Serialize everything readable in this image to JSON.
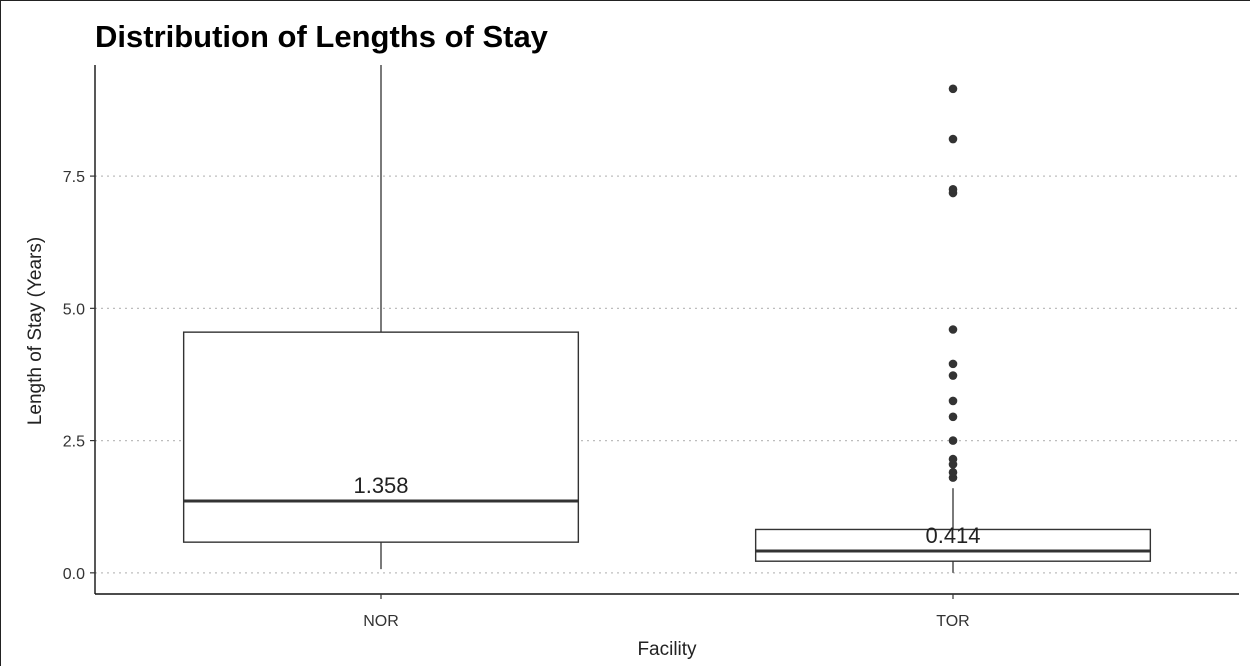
{
  "chart_data": {
    "type": "box",
    "title": "Distribution of Lengths of Stay",
    "xlabel": "Facility",
    "ylabel": "Length of Stay (Years)",
    "ylim": [
      -0.4,
      9.6
    ],
    "y_ticks": [
      0.0,
      2.5,
      5.0,
      7.5
    ],
    "y_tick_labels": [
      "0.0",
      "2.5",
      "5.0",
      "7.5"
    ],
    "grid": "horizontal-dotted",
    "categories": [
      "NOR",
      "TOR"
    ],
    "boxes": [
      {
        "name": "NOR",
        "whisker_low": 0.07,
        "q1": 0.58,
        "median": 1.358,
        "q3": 4.55,
        "whisker_high": 9.6,
        "median_label": "1.358",
        "outliers": []
      },
      {
        "name": "TOR",
        "whisker_low": 0.0,
        "q1": 0.22,
        "median": 0.414,
        "q3": 0.82,
        "whisker_high": 1.6,
        "median_label": "0.414",
        "outliers": [
          1.8,
          1.9,
          2.05,
          2.15,
          2.5,
          2.95,
          3.25,
          3.73,
          3.95,
          4.6,
          7.18,
          7.25,
          8.2,
          9.15
        ]
      }
    ]
  }
}
